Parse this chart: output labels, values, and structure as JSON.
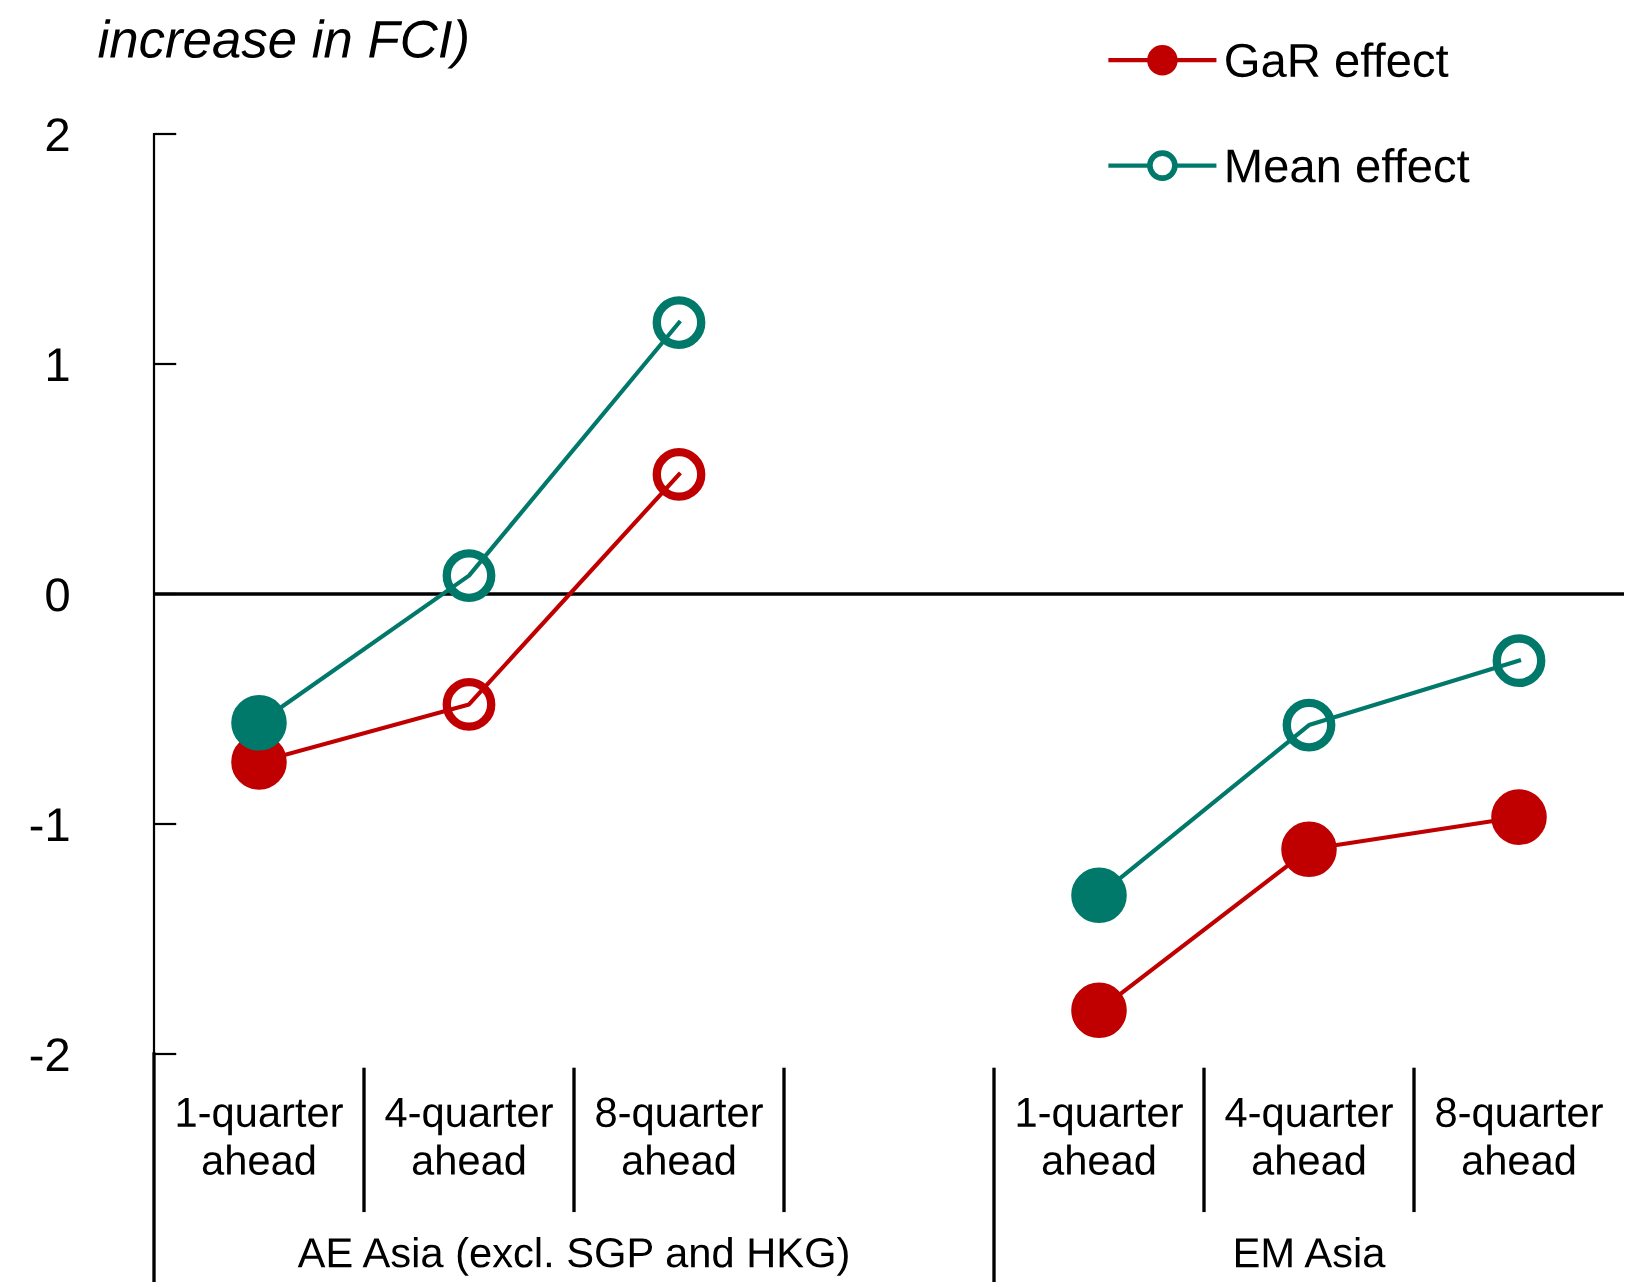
{
  "chart_data": {
    "type": "line",
    "title": "increase in FCI)",
    "categories": [
      "1-quarter\nahead",
      "4-quarter\nahead",
      "8-quarter\nahead",
      null,
      "1-quarter\nahead",
      "4-quarter\nahead",
      "8-quarter\nahead"
    ],
    "series": [
      {
        "name": "GaR effect",
        "color": "#c00000",
        "colors": [
          "#c00000",
          "#ffffff",
          "#ffffff",
          null,
          "#c00000",
          "#c00000",
          "#c00000"
        ],
        "values": [
          -0.73,
          -0.48,
          0.52,
          null,
          -1.81,
          -1.11,
          -0.97
        ]
      },
      {
        "name": "Mean effect",
        "color": "#00786a",
        "colors": [
          "#00786a",
          "#ffffff",
          "#ffffff",
          null,
          "#00786a",
          "#ffffff",
          "#ffffff"
        ],
        "values": [
          -0.56,
          0.08,
          1.18,
          null,
          -1.31,
          -0.57,
          -0.29
        ]
      }
    ],
    "annotations": [
      "AE Asia (excl. SGP and HKG)",
      "EM Asia"
    ],
    "ylim": [
      -2,
      2
    ],
    "yticks": [
      -2,
      -1,
      0,
      1,
      2
    ],
    "ref_lines": [
      {
        "axis": "y",
        "value": 0,
        "label": null,
        "color": "#000000"
      }
    ],
    "marker": "circle",
    "line_style": "solid",
    "legend": "top right",
    "grid": false
  }
}
